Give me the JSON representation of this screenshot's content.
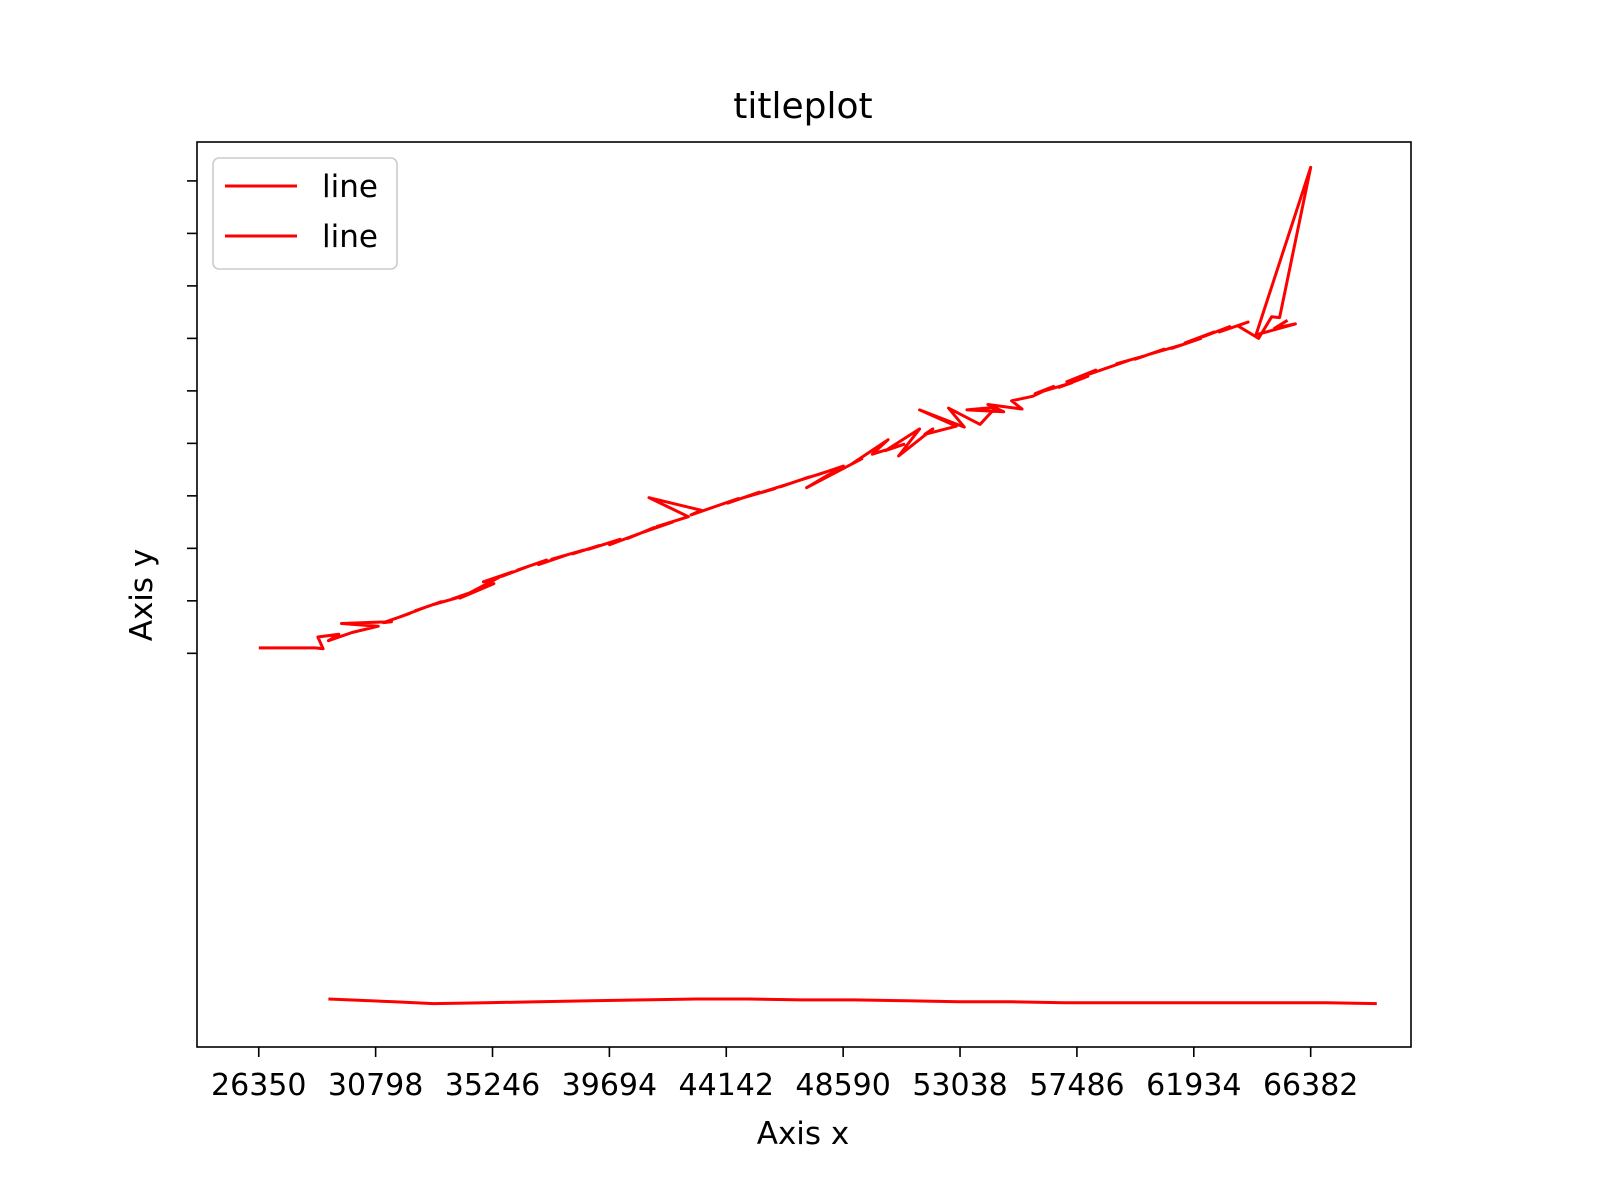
{
  "chart_data": {
    "type": "line",
    "title": "titleplot",
    "xlabel": "Axis x",
    "ylabel": "Axis y",
    "xlim": [
      24000,
      70200
    ],
    "ylim": [
      0,
      100
    ],
    "x_ticks": [
      26350,
      30798,
      35246,
      39694,
      44142,
      48590,
      53038,
      57486,
      61934,
      66382
    ],
    "y_tick_values": [
      43.5,
      49.3,
      55.1,
      60.9,
      66.7,
      72.5,
      78.3,
      84.1,
      89.9,
      95.7
    ],
    "y_tick_labels_shown": false,
    "grid": false,
    "legend": {
      "placement": "top-left",
      "entries": [
        "line",
        "line"
      ]
    },
    "line_color": "#ff0000",
    "series": [
      {
        "name": "line",
        "color": "#ff0000",
        "x": [
          26350,
          28500,
          28800,
          28600,
          29400,
          29000,
          29900,
          30900,
          29500,
          31400,
          31100,
          32100,
          31700,
          32700,
          32300,
          33300,
          33000,
          34100,
          33700,
          34800,
          34300,
          35300,
          34000,
          35500,
          34900,
          36000,
          35600,
          36700,
          36200,
          37300,
          37000,
          38100,
          37500,
          38700,
          38300,
          39300,
          38900,
          40100,
          39700,
          40800,
          40400,
          41400,
          40900,
          42100,
          41500,
          42700,
          41200,
          43200,
          42800,
          44000,
          43500,
          44600,
          44200,
          45400,
          44800,
          46000,
          45500,
          46600,
          46200,
          47300,
          46800,
          48000,
          47600,
          48600,
          47200,
          49300,
          48900,
          50300,
          49700,
          50900,
          50200,
          51500,
          50700,
          52000,
          51700,
          52900,
          51500,
          53200,
          52600,
          53800,
          54400,
          53300,
          54700,
          54100,
          55400,
          55000,
          55800,
          56600,
          55900,
          57300,
          56800,
          57900,
          57100,
          58200,
          57700,
          58900,
          58400,
          59500,
          59000,
          60100,
          59700,
          60800,
          60300,
          61500,
          61100,
          62200,
          61600,
          62700,
          62300,
          63300,
          62900,
          64000,
          63600,
          64400,
          64900,
          65200,
          66382,
          64300,
          65800,
          65000,
          65500
        ],
        "y": [
          44.1,
          44.1,
          44.0,
          45.3,
          45.6,
          44.9,
          45.8,
          46.5,
          46.8,
          47.0,
          46.9,
          47.9,
          47.5,
          48.6,
          48.2,
          49.2,
          48.9,
          49.8,
          49.5,
          50.6,
          50.1,
          51.2,
          49.6,
          51.9,
          51.4,
          52.5,
          52.0,
          53.2,
          52.7,
          53.8,
          53.3,
          54.4,
          53.9,
          54.9,
          54.5,
          55.4,
          55.0,
          56.1,
          55.5,
          56.7,
          56.2,
          57.4,
          56.8,
          58.0,
          57.5,
          58.6,
          60.7,
          59.3,
          58.8,
          60.0,
          59.5,
          60.6,
          60.1,
          61.3,
          60.7,
          61.7,
          61.3,
          62.3,
          61.9,
          63.0,
          62.5,
          63.6,
          63.2,
          64.2,
          61.8,
          65.0,
          64.4,
          67.1,
          65.5,
          66.6,
          65.9,
          68.3,
          65.3,
          68.3,
          67.7,
          68.6,
          70.4,
          68.5,
          70.6,
          68.8,
          70.7,
          70.4,
          70.2,
          71.0,
          70.5,
          71.4,
          71.9,
          73.0,
          72.2,
          73.4,
          72.9,
          74.1,
          73.5,
          74.8,
          74.1,
          75.3,
          74.8,
          75.9,
          75.5,
          76.4,
          76.0,
          77.1,
          76.6,
          77.6,
          77.2,
          78.3,
          77.8,
          79.0,
          78.5,
          79.6,
          79.0,
          80.1,
          79.7,
          78.3,
          80.7,
          80.6,
          97.2,
          78.7,
          79.9,
          79.4,
          80.3
        ]
      },
      {
        "name": "line",
        "color": "#ff0000",
        "x": [
          29000,
          31500,
          33000,
          35000,
          37000,
          39000,
          41000,
          43000,
          45000,
          47000,
          49000,
          51000,
          53000,
          55000,
          57000,
          59000,
          61000,
          63000,
          65000,
          67000,
          68900
        ],
        "y": [
          5.3,
          5.0,
          4.8,
          4.9,
          5.0,
          5.1,
          5.2,
          5.3,
          5.3,
          5.2,
          5.2,
          5.1,
          5.0,
          5.0,
          4.9,
          4.9,
          4.9,
          4.9,
          4.9,
          4.9,
          4.8
        ]
      }
    ]
  }
}
